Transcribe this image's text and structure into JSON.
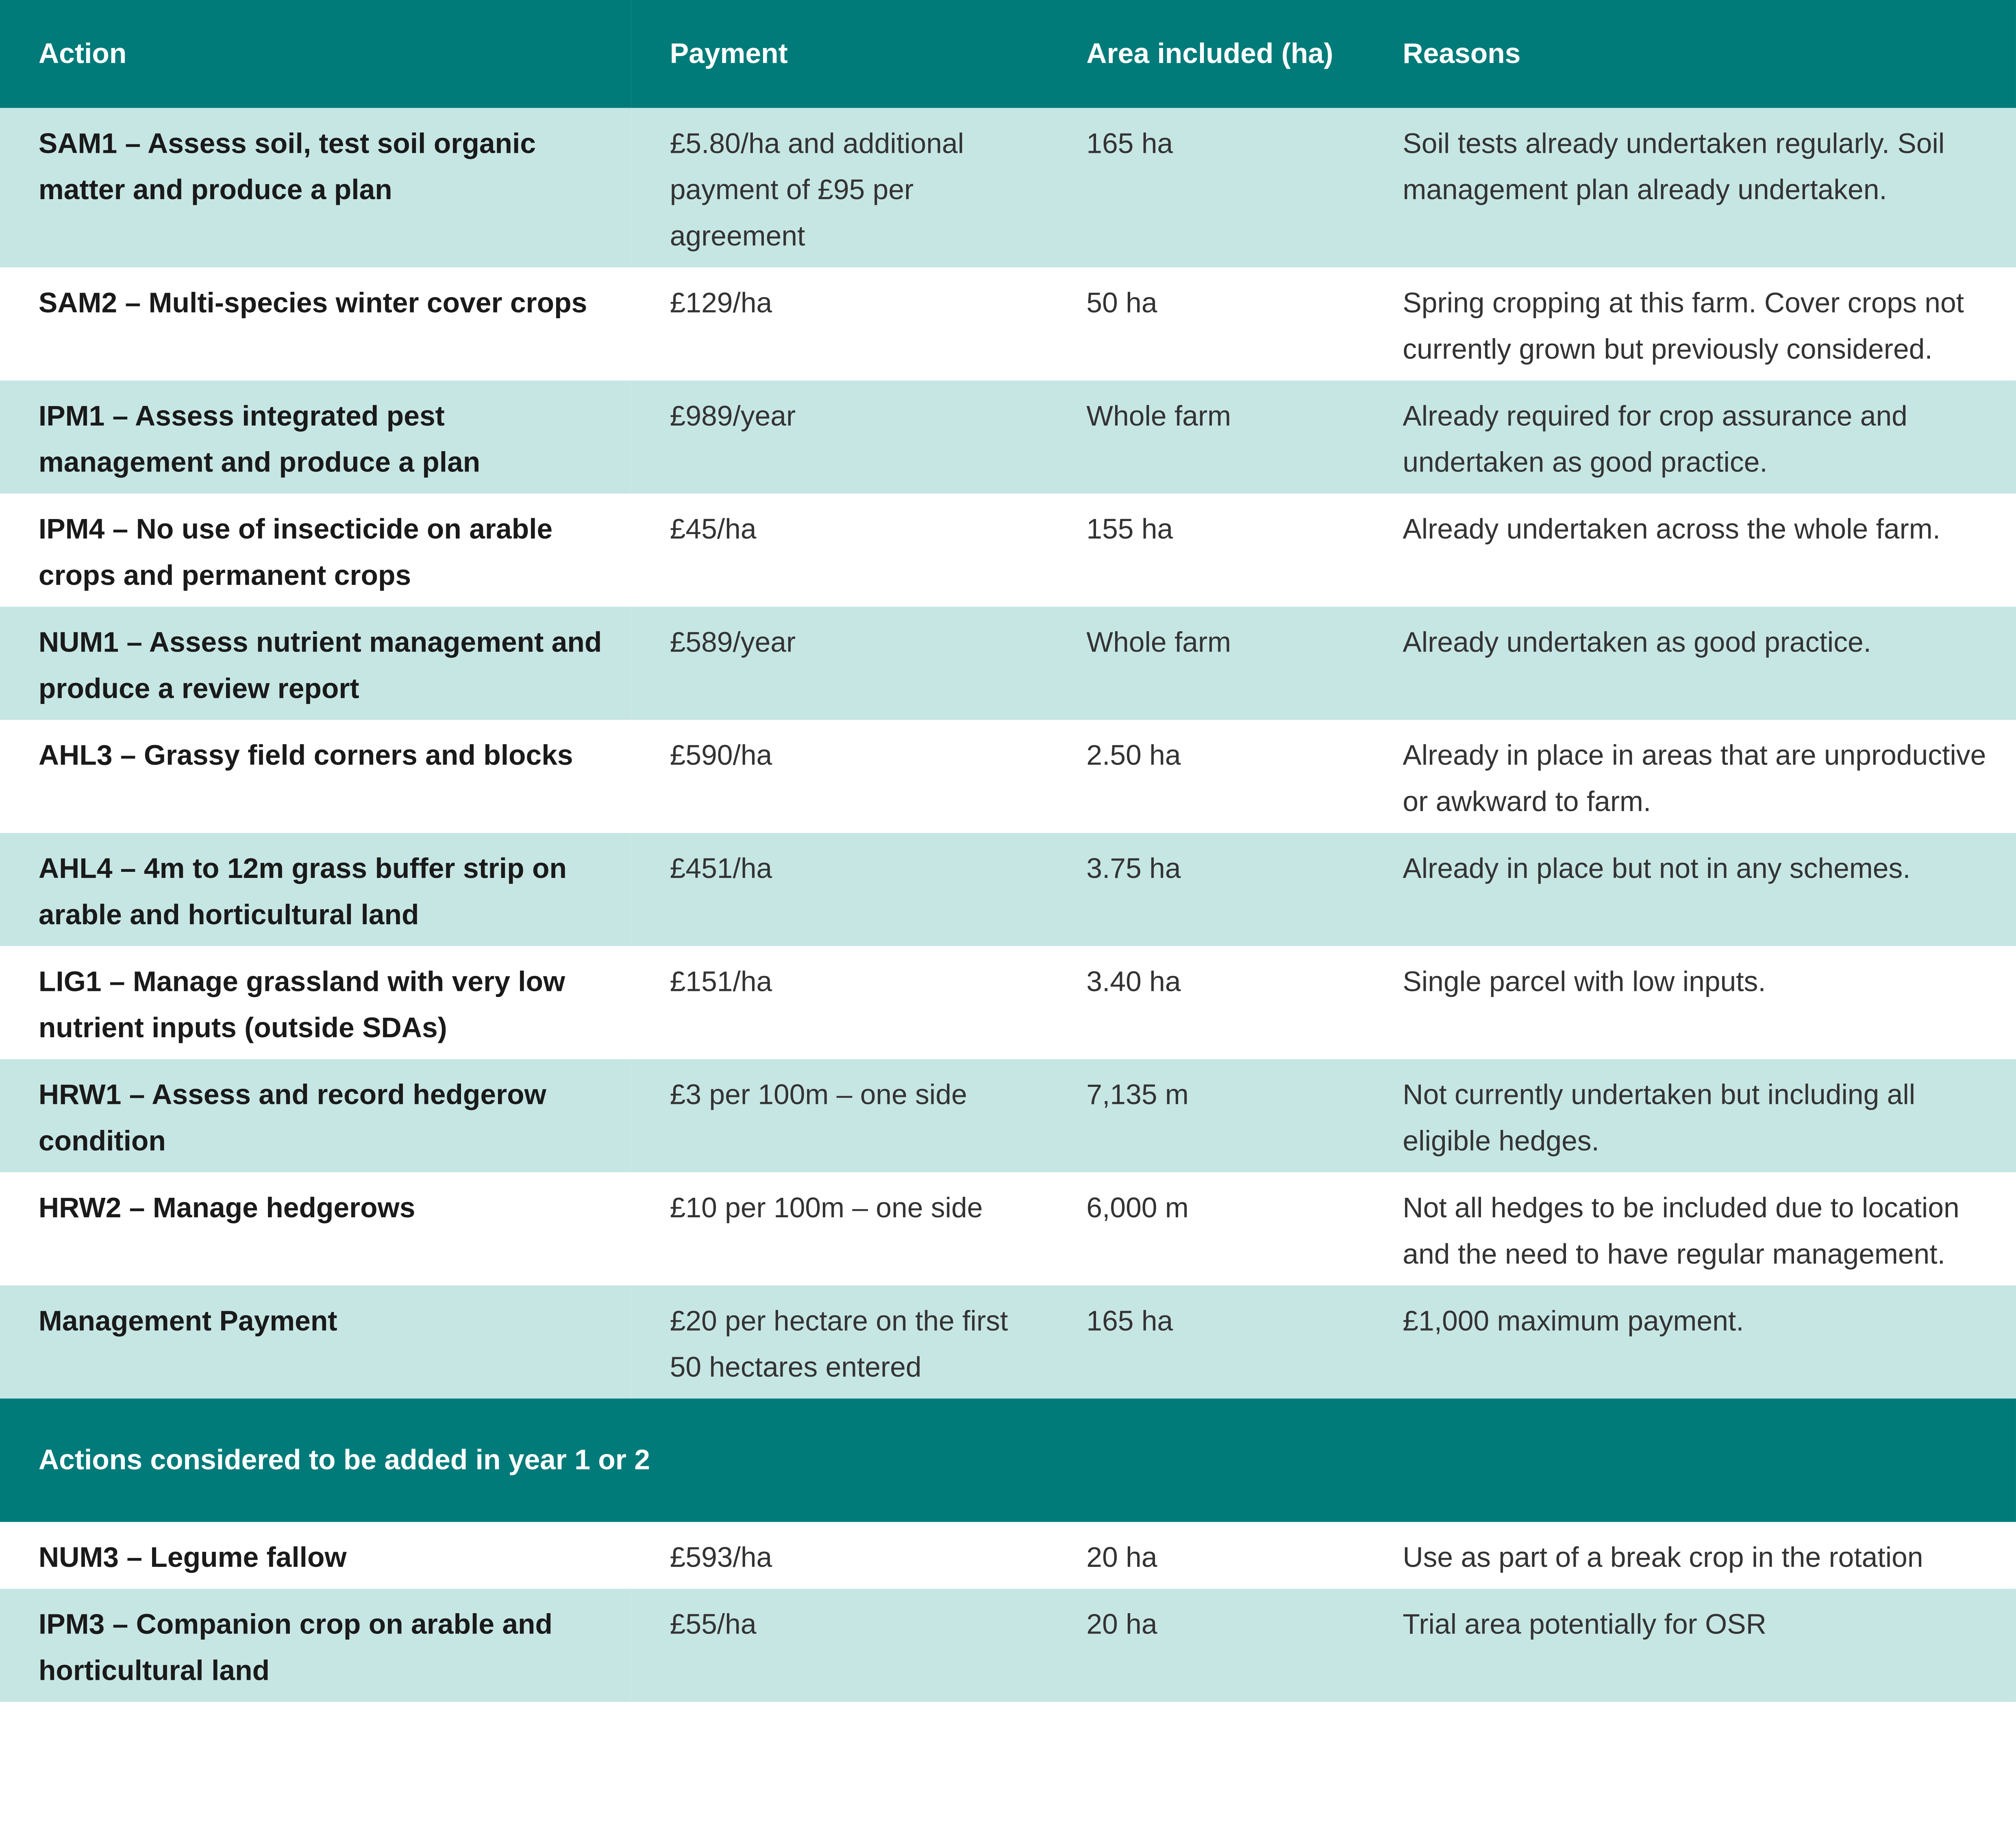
{
  "table": {
    "columns": [
      "Action",
      "Payment",
      "Area included (ha)",
      "Reasons"
    ],
    "rows": [
      [
        "SAM1 – Assess soil, test soil organic matter and produce a plan",
        "£5.80/ha and additional payment of £95 per agreement",
        "165 ha",
        "Soil tests already undertaken regularly. Soil management plan already undertaken."
      ],
      [
        "SAM2 – Multi-species winter cover crops",
        "£129/ha",
        "50 ha",
        "Spring cropping at this farm. Cover crops not currently grown but previously considered."
      ],
      [
        "IPM1 – Assess integrated pest management and produce a plan",
        "£989/year",
        "Whole farm",
        "Already required for crop assurance and undertaken as good practice."
      ],
      [
        "IPM4 – No use of insecticide on arable crops and permanent crops",
        "£45/ha",
        "155 ha",
        "Already undertaken across the whole farm."
      ],
      [
        "NUM1 – Assess nutrient management and produce a review report",
        "£589/year",
        "Whole farm",
        "Already undertaken as good practice."
      ],
      [
        "AHL3 – Grassy field corners and blocks",
        "£590/ha",
        "2.50 ha",
        "Already in place in areas that are unproductive or awkward to farm."
      ],
      [
        "AHL4 – 4m to 12m grass buffer strip on arable and horticultural land",
        "£451/ha",
        "3.75 ha",
        "Already in place but not in any schemes."
      ],
      [
        "LIG1 – Manage grassland with very low nutrient inputs (outside SDAs)",
        "£151/ha",
        "3.40 ha",
        "Single parcel with low inputs."
      ],
      [
        "HRW1 – Assess and record hedgerow condition",
        "£3 per 100m – one side",
        "7,135 m",
        "Not currently undertaken but including all eligible hedges."
      ],
      [
        "HRW2 – Manage hedgerows",
        "£10 per 100m – one side",
        "6,000 m",
        "Not all hedges to be included due to location and the need to have regular management."
      ],
      [
        "Management Payment",
        "£20 per hectare on the first 50 hectares entered",
        "165 ha",
        "£1,000 maximum payment."
      ]
    ],
    "section_title": "Actions considered to be added in year 1 or 2",
    "section_rows": [
      [
        "NUM3 – Legume fallow",
        "£593/ha",
        "20 ha",
        "Use as part of a break crop in the rotation"
      ],
      [
        "IPM3 – Companion crop on arable and horticultural land",
        "£55/ha",
        "20 ha",
        "Trial area potentially for OSR"
      ]
    ]
  }
}
